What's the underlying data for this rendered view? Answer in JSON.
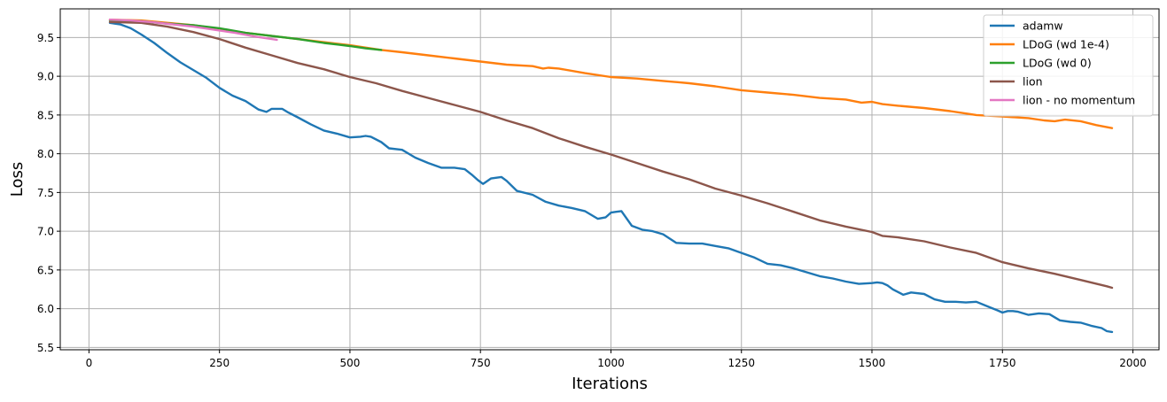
{
  "chart_data": {
    "type": "line",
    "title": "",
    "xlabel": "Iterations",
    "ylabel": "Loss",
    "xlim": [
      -55,
      2050
    ],
    "ylim": [
      5.47,
      9.87
    ],
    "xticks": [
      0,
      250,
      500,
      750,
      1000,
      1250,
      1500,
      1750,
      2000
    ],
    "yticks": [
      5.5,
      6.0,
      6.5,
      7.0,
      7.5,
      8.0,
      8.5,
      9.0,
      9.5
    ],
    "xtick_labels": [
      "0",
      "250",
      "500",
      "750",
      "1000",
      "1250",
      "1500",
      "1750",
      "2000"
    ],
    "ytick_labels": [
      "5.5",
      "6.0",
      "6.5",
      "7.0",
      "7.5",
      "8.0",
      "8.5",
      "9.0",
      "9.5"
    ],
    "grid": true,
    "legend": "top-right",
    "series": [
      {
        "name": "adamw",
        "color": "#1f77b4",
        "x": [
          40,
          60,
          80,
          100,
          125,
          150,
          175,
          200,
          225,
          250,
          275,
          300,
          325,
          340,
          350,
          370,
          380,
          400,
          425,
          450,
          475,
          500,
          520,
          530,
          540,
          560,
          575,
          600,
          625,
          650,
          675,
          700,
          720,
          735,
          745,
          755,
          770,
          790,
          800,
          820,
          850,
          875,
          900,
          925,
          950,
          975,
          990,
          1000,
          1010,
          1020,
          1040,
          1060,
          1080,
          1100,
          1125,
          1150,
          1175,
          1200,
          1225,
          1250,
          1275,
          1300,
          1325,
          1350,
          1375,
          1400,
          1425,
          1450,
          1475,
          1500,
          1510,
          1520,
          1530,
          1540,
          1560,
          1575,
          1600,
          1620,
          1640,
          1660,
          1680,
          1700,
          1725,
          1740,
          1750,
          1760,
          1770,
          1780,
          1800,
          1820,
          1840,
          1860,
          1880,
          1900,
          1920,
          1940,
          1950,
          1960
        ],
        "y": [
          9.69,
          9.67,
          9.62,
          9.54,
          9.43,
          9.3,
          9.18,
          9.08,
          8.98,
          8.85,
          8.75,
          8.68,
          8.57,
          8.54,
          8.58,
          8.58,
          8.54,
          8.47,
          8.38,
          8.3,
          8.26,
          8.21,
          8.22,
          8.23,
          8.22,
          8.15,
          8.07,
          8.05,
          7.95,
          7.88,
          7.82,
          7.82,
          7.8,
          7.72,
          7.66,
          7.61,
          7.68,
          7.7,
          7.65,
          7.52,
          7.47,
          7.38,
          7.33,
          7.3,
          7.26,
          7.16,
          7.18,
          7.24,
          7.25,
          7.26,
          7.07,
          7.02,
          7.0,
          6.96,
          6.85,
          6.84,
          6.84,
          6.81,
          6.78,
          6.72,
          6.66,
          6.58,
          6.56,
          6.52,
          6.47,
          6.42,
          6.39,
          6.35,
          6.32,
          6.33,
          6.34,
          6.33,
          6.3,
          6.25,
          6.18,
          6.21,
          6.19,
          6.12,
          6.09,
          6.09,
          6.08,
          6.09,
          6.02,
          5.98,
          5.95,
          5.97,
          5.97,
          5.96,
          5.92,
          5.94,
          5.93,
          5.85,
          5.83,
          5.82,
          5.78,
          5.75,
          5.71,
          5.7
        ]
      },
      {
        "name": "LDoG (wd 1e-4)",
        "color": "#ff7f0e",
        "x": [
          40,
          100,
          200,
          300,
          400,
          500,
          560,
          600,
          650,
          700,
          750,
          800,
          850,
          870,
          880,
          900,
          950,
          1000,
          1050,
          1100,
          1150,
          1200,
          1250,
          1300,
          1350,
          1400,
          1450,
          1480,
          1500,
          1520,
          1550,
          1600,
          1650,
          1700,
          1750,
          1800,
          1830,
          1850,
          1870,
          1900,
          1930,
          1960
        ],
        "y": [
          9.73,
          9.72,
          9.66,
          9.56,
          9.48,
          9.4,
          9.34,
          9.31,
          9.27,
          9.23,
          9.19,
          9.15,
          9.13,
          9.1,
          9.11,
          9.1,
          9.04,
          8.99,
          8.97,
          8.94,
          8.91,
          8.87,
          8.82,
          8.79,
          8.76,
          8.72,
          8.7,
          8.66,
          8.67,
          8.64,
          8.62,
          8.59,
          8.55,
          8.5,
          8.48,
          8.46,
          8.43,
          8.42,
          8.44,
          8.42,
          8.37,
          8.33
        ]
      },
      {
        "name": "LDoG (wd 0)",
        "color": "#2ca02c",
        "x": [
          40,
          100,
          150,
          200,
          250,
          300,
          350,
          400,
          450,
          500,
          530,
          560
        ],
        "y": [
          9.72,
          9.71,
          9.68,
          9.66,
          9.62,
          9.56,
          9.52,
          9.48,
          9.43,
          9.39,
          9.36,
          9.34
        ]
      },
      {
        "name": "lion",
        "color": "#8c564b",
        "x": [
          40,
          100,
          150,
          200,
          250,
          300,
          350,
          400,
          450,
          500,
          550,
          600,
          650,
          700,
          750,
          800,
          850,
          900,
          950,
          1000,
          1050,
          1100,
          1150,
          1200,
          1250,
          1300,
          1350,
          1400,
          1450,
          1500,
          1520,
          1550,
          1600,
          1650,
          1700,
          1750,
          1800,
          1850,
          1900,
          1950,
          1960
        ],
        "y": [
          9.7,
          9.69,
          9.64,
          9.57,
          9.48,
          9.37,
          9.27,
          9.17,
          9.09,
          8.99,
          8.91,
          8.81,
          8.72,
          8.63,
          8.54,
          8.43,
          8.33,
          8.2,
          8.09,
          7.99,
          7.88,
          7.77,
          7.67,
          7.55,
          7.46,
          7.36,
          7.25,
          7.14,
          7.06,
          6.99,
          6.94,
          6.92,
          6.87,
          6.79,
          6.72,
          6.6,
          6.52,
          6.45,
          6.37,
          6.29,
          6.27
        ]
      },
      {
        "name": "lion - no momentum",
        "color": "#e377c2",
        "x": [
          40,
          80,
          120,
          160,
          200,
          240,
          280,
          320,
          360
        ],
        "y": [
          9.73,
          9.72,
          9.7,
          9.67,
          9.64,
          9.6,
          9.56,
          9.51,
          9.47
        ]
      }
    ]
  }
}
